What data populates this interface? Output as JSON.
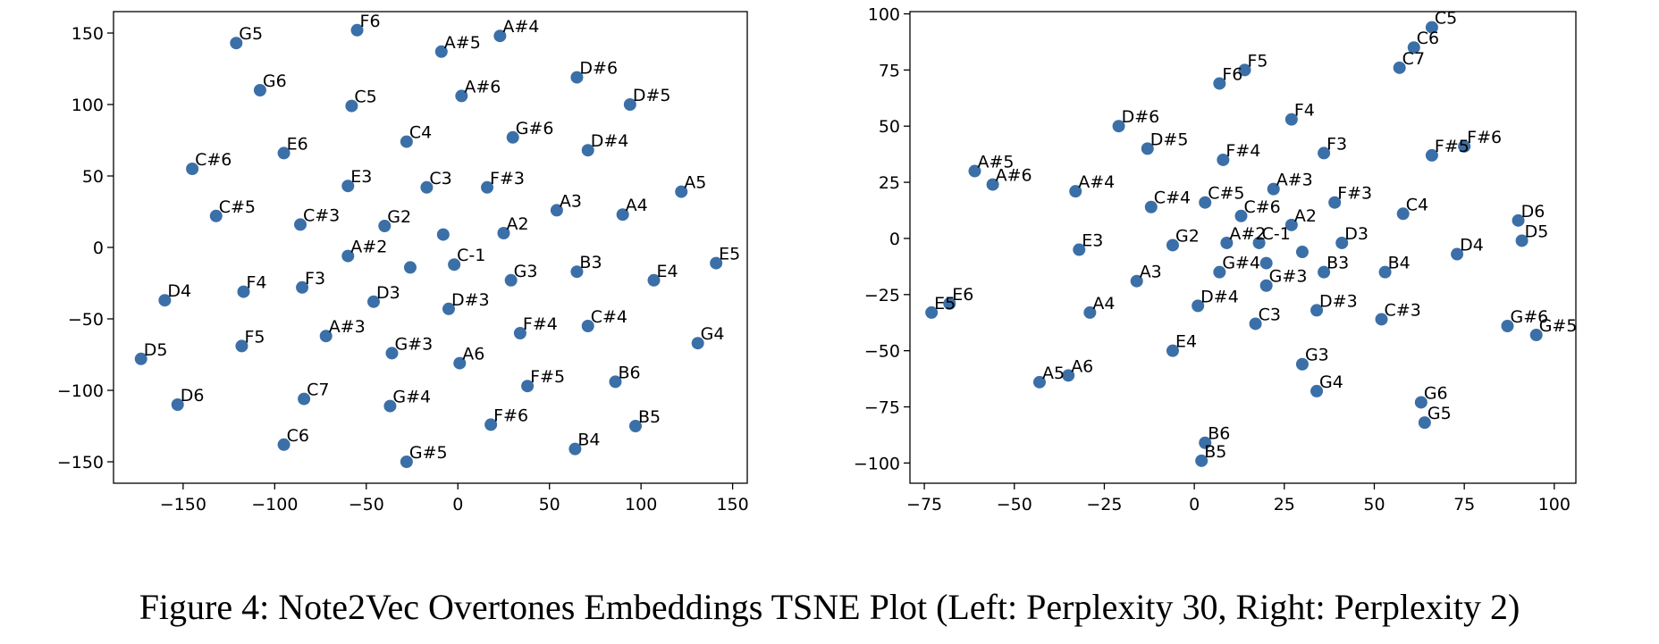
{
  "caption": "Figure 4: Note2Vec Overtones Embeddings TSNE Plot (Left: Perplexity 30, Right: Perplexity 2)",
  "point_color": "#3b6fa8",
  "chart_data": [
    {
      "type": "scatter",
      "title": "",
      "xlabel": "",
      "ylabel": "",
      "xlim": [
        -188,
        158
      ],
      "ylim": [
        -165,
        165
      ],
      "xticks": [
        -150,
        -100,
        -50,
        0,
        50,
        100,
        150
      ],
      "xtick_labels": [
        "−150",
        "−100",
        "−50",
        "0",
        "50",
        "100",
        "150"
      ],
      "yticks": [
        -150,
        -100,
        -50,
        0,
        50,
        100,
        150
      ],
      "ytick_labels": [
        "−150",
        "−100",
        "−50",
        "0",
        "50",
        "100",
        "150"
      ],
      "grid": false,
      "points": [
        {
          "label": "G5",
          "x": -121,
          "y": 143
        },
        {
          "label": "F6",
          "x": -55,
          "y": 152
        },
        {
          "label": "A#5",
          "x": -9,
          "y": 137
        },
        {
          "label": "A#4",
          "x": 23,
          "y": 148
        },
        {
          "label": "G6",
          "x": -108,
          "y": 110
        },
        {
          "label": "C5",
          "x": -58,
          "y": 99
        },
        {
          "label": "A#6",
          "x": 2,
          "y": 106
        },
        {
          "label": "D#6",
          "x": 65,
          "y": 119
        },
        {
          "label": "D#5",
          "x": 94,
          "y": 100
        },
        {
          "label": "E6",
          "x": -95,
          "y": 66
        },
        {
          "label": "C4",
          "x": -28,
          "y": 74
        },
        {
          "label": "G#6",
          "x": 30,
          "y": 77
        },
        {
          "label": "D#4",
          "x": 71,
          "y": 68
        },
        {
          "label": "C#6",
          "x": -145,
          "y": 55
        },
        {
          "label": "E3",
          "x": -60,
          "y": 43
        },
        {
          "label": "C3",
          "x": -17,
          "y": 42
        },
        {
          "label": "F#3",
          "x": 16,
          "y": 42
        },
        {
          "label": "A5",
          "x": 122,
          "y": 39
        },
        {
          "label": "A3",
          "x": 54,
          "y": 26
        },
        {
          "label": "A4",
          "x": 90,
          "y": 23
        },
        {
          "label": "C#5",
          "x": -132,
          "y": 22
        },
        {
          "label": "C#3",
          "x": -86,
          "y": 16
        },
        {
          "label": "G2",
          "x": -40,
          "y": 15
        },
        {
          "label": "",
          "x": -8,
          "y": 9
        },
        {
          "label": "A2",
          "x": 25,
          "y": 10
        },
        {
          "label": "A#2",
          "x": -60,
          "y": -6
        },
        {
          "label": "",
          "x": -26,
          "y": -14
        },
        {
          "label": "C-1",
          "x": -2,
          "y": -12
        },
        {
          "label": "E5",
          "x": 141,
          "y": -11
        },
        {
          "label": "B3",
          "x": 65,
          "y": -17
        },
        {
          "label": "G3",
          "x": 29,
          "y": -23
        },
        {
          "label": "E4",
          "x": 107,
          "y": -23
        },
        {
          "label": "D4",
          "x": -160,
          "y": -37
        },
        {
          "label": "F4",
          "x": -117,
          "y": -31
        },
        {
          "label": "F3",
          "x": -85,
          "y": -28
        },
        {
          "label": "D3",
          "x": -46,
          "y": -38
        },
        {
          "label": "D#3",
          "x": -5,
          "y": -43
        },
        {
          "label": "D5",
          "x": -173,
          "y": -78
        },
        {
          "label": "F5",
          "x": -118,
          "y": -69
        },
        {
          "label": "A#3",
          "x": -72,
          "y": -62
        },
        {
          "label": "G#3",
          "x": -36,
          "y": -74
        },
        {
          "label": "A6",
          "x": 1,
          "y": -81
        },
        {
          "label": "F#4",
          "x": 34,
          "y": -60
        },
        {
          "label": "C#4",
          "x": 71,
          "y": -55
        },
        {
          "label": "G4",
          "x": 131,
          "y": -67
        },
        {
          "label": "D6",
          "x": -153,
          "y": -110
        },
        {
          "label": "C7",
          "x": -84,
          "y": -106
        },
        {
          "label": "G#4",
          "x": -37,
          "y": -111
        },
        {
          "label": "F#5",
          "x": 38,
          "y": -97
        },
        {
          "label": "B6",
          "x": 86,
          "y": -94
        },
        {
          "label": "C6",
          "x": -95,
          "y": -138
        },
        {
          "label": "G#5",
          "x": -28,
          "y": -150
        },
        {
          "label": "F#6",
          "x": 18,
          "y": -124
        },
        {
          "label": "B4",
          "x": 64,
          "y": -141
        },
        {
          "label": "B5",
          "x": 97,
          "y": -125
        }
      ]
    },
    {
      "type": "scatter",
      "title": "",
      "xlabel": "",
      "ylabel": "",
      "xlim": [
        -79,
        106
      ],
      "ylim": [
        -109,
        101
      ],
      "xticks": [
        -75,
        -50,
        -25,
        0,
        25,
        50,
        75,
        100
      ],
      "xtick_labels": [
        "−75",
        "−50",
        "−25",
        "0",
        "25",
        "50",
        "75",
        "100"
      ],
      "yticks": [
        -100,
        -75,
        -50,
        -25,
        0,
        25,
        50,
        75,
        100
      ],
      "ytick_labels": [
        "−100",
        "−75",
        "−50",
        "−25",
        "0",
        "25",
        "50",
        "75",
        "100"
      ],
      "grid": false,
      "points": [
        {
          "label": "C5",
          "x": 66,
          "y": 94
        },
        {
          "label": "C6",
          "x": 61,
          "y": 85
        },
        {
          "label": "C7",
          "x": 57,
          "y": 76
        },
        {
          "label": "F5",
          "x": 14,
          "y": 75
        },
        {
          "label": "F6",
          "x": 7,
          "y": 69
        },
        {
          "label": "F4",
          "x": 27,
          "y": 53
        },
        {
          "label": "D#6",
          "x": -21,
          "y": 50
        },
        {
          "label": "D#5",
          "x": -13,
          "y": 40
        },
        {
          "label": "F#4",
          "x": 8,
          "y": 35
        },
        {
          "label": "F3",
          "x": 36,
          "y": 38
        },
        {
          "label": "F#5",
          "x": 66,
          "y": 37
        },
        {
          "label": "F#6",
          "x": 75,
          "y": 41
        },
        {
          "label": "A#5",
          "x": -61,
          "y": 30
        },
        {
          "label": "A#6",
          "x": -56,
          "y": 24
        },
        {
          "label": "A#4",
          "x": -33,
          "y": 21
        },
        {
          "label": "A#3",
          "x": 22,
          "y": 22
        },
        {
          "label": "F#3",
          "x": 39,
          "y": 16
        },
        {
          "label": "C#4",
          "x": -12,
          "y": 14
        },
        {
          "label": "C#5",
          "x": 3,
          "y": 16
        },
        {
          "label": "C#6",
          "x": 13,
          "y": 10
        },
        {
          "label": "A2",
          "x": 27,
          "y": 6
        },
        {
          "label": "C4",
          "x": 58,
          "y": 11
        },
        {
          "label": "D6",
          "x": 90,
          "y": 8
        },
        {
          "label": "D5",
          "x": 91,
          "y": -1
        },
        {
          "label": "E3",
          "x": -32,
          "y": -5
        },
        {
          "label": "G2",
          "x": -6,
          "y": -3
        },
        {
          "label": "A#2",
          "x": 9,
          "y": -2
        },
        {
          "label": "C-1",
          "x": 18,
          "y": -2
        },
        {
          "label": "",
          "x": 30,
          "y": -6
        },
        {
          "label": "D3",
          "x": 41,
          "y": -2
        },
        {
          "label": "D4",
          "x": 73,
          "y": -7
        },
        {
          "label": "",
          "x": 20,
          "y": -11
        },
        {
          "label": "G#4",
          "x": 7,
          "y": -15
        },
        {
          "label": "B3",
          "x": 36,
          "y": -15
        },
        {
          "label": "B4",
          "x": 53,
          "y": -15
        },
        {
          "label": "A3",
          "x": -16,
          "y": -19
        },
        {
          "label": "G#3",
          "x": 20,
          "y": -21
        },
        {
          "label": "E6",
          "x": -68,
          "y": -29
        },
        {
          "label": "E5",
          "x": -73,
          "y": -33
        },
        {
          "label": "A4",
          "x": -29,
          "y": -33
        },
        {
          "label": "D#4",
          "x": 1,
          "y": -30
        },
        {
          "label": "D#3",
          "x": 34,
          "y": -32
        },
        {
          "label": "C#3",
          "x": 52,
          "y": -36
        },
        {
          "label": "C3",
          "x": 17,
          "y": -38
        },
        {
          "label": "G#6",
          "x": 87,
          "y": -39
        },
        {
          "label": "G#5",
          "x": 95,
          "y": -43
        },
        {
          "label": "E4",
          "x": -6,
          "y": -50
        },
        {
          "label": "G3",
          "x": 30,
          "y": -56
        },
        {
          "label": "A6",
          "x": -35,
          "y": -61
        },
        {
          "label": "A5",
          "x": -43,
          "y": -64
        },
        {
          "label": "G4",
          "x": 34,
          "y": -68
        },
        {
          "label": "G6",
          "x": 63,
          "y": -73
        },
        {
          "label": "G5",
          "x": 64,
          "y": -82
        },
        {
          "label": "B6",
          "x": 3,
          "y": -91
        },
        {
          "label": "B5",
          "x": 2,
          "y": -99
        }
      ]
    }
  ]
}
